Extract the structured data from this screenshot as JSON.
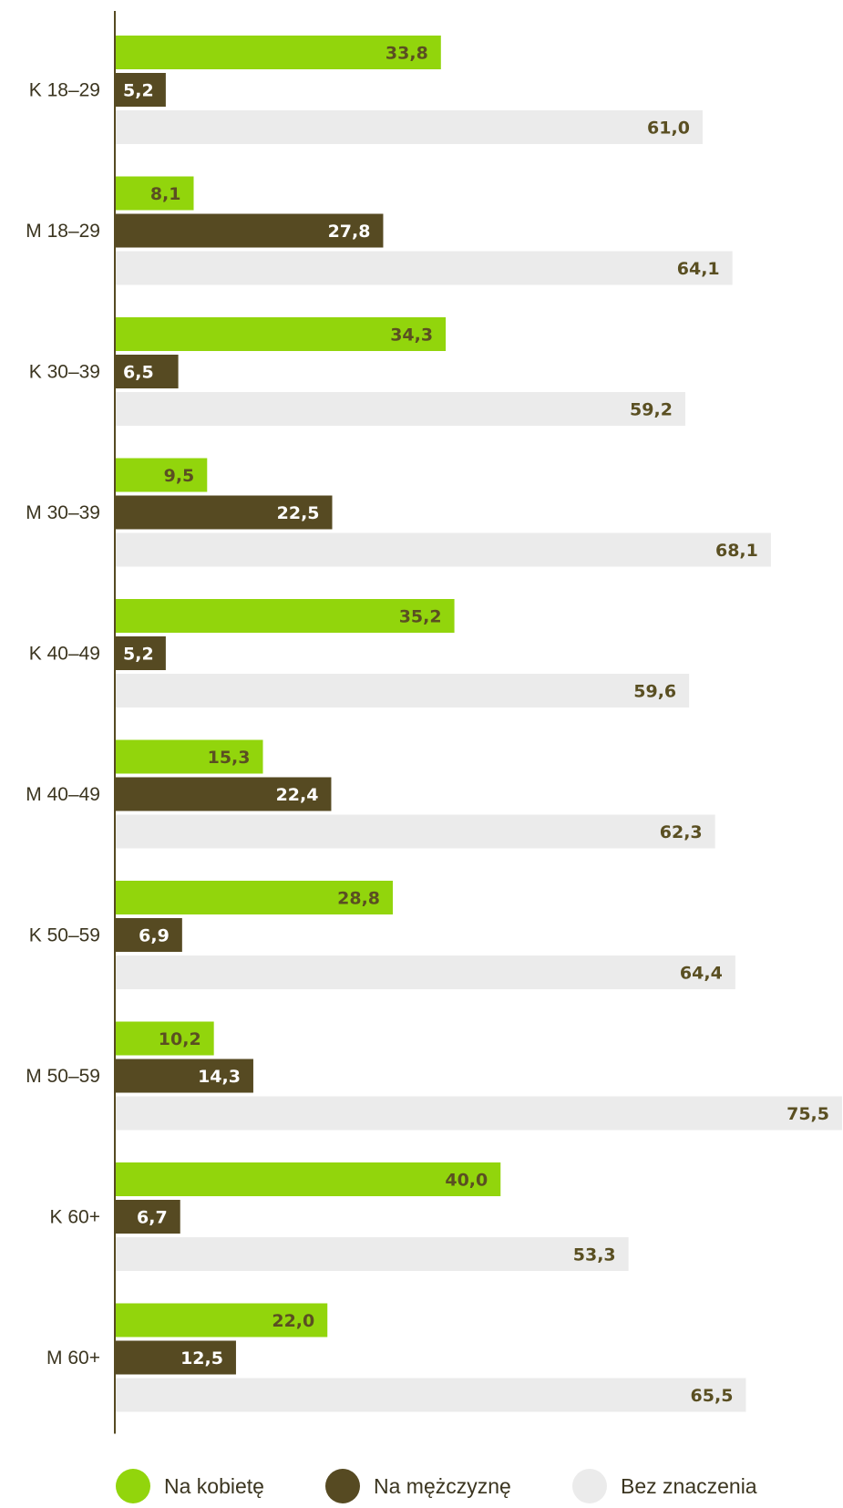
{
  "chart_data": {
    "type": "bar",
    "orientation": "horizontal",
    "categories": [
      "K 18–29",
      "M 18–29",
      "K 30–39",
      "M 30–39",
      "K 40–49",
      "M 40–49",
      "K 50–59",
      "M 50–59",
      "K 60+",
      "M 60+"
    ],
    "series": [
      {
        "name": "Na kobietę",
        "color": "#92d50c",
        "label_color": "#5a4f22",
        "values": [
          33.8,
          8.1,
          34.3,
          9.5,
          35.2,
          15.3,
          28.8,
          10.2,
          40.0,
          22.0
        ],
        "labels": [
          "33,8",
          "8,1",
          "34,3",
          "9,5",
          "35,2",
          "15,3",
          "28,8",
          "10,2",
          "40,0",
          "22,0"
        ]
      },
      {
        "name": "Na mężczyznę",
        "color": "#564a22",
        "label_color": "#ffffff",
        "values": [
          5.2,
          27.8,
          6.5,
          22.5,
          5.2,
          22.4,
          6.9,
          14.3,
          6.7,
          12.5
        ],
        "labels": [
          "5,2",
          "27,8",
          "6,5",
          "22,5",
          "5,2",
          "22,4",
          "6,9",
          "14,3",
          "6,7",
          "12,5"
        ]
      },
      {
        "name": "Bez znaczenia",
        "color": "#ebebeb",
        "label_color": "#5a4f22",
        "values": [
          61.0,
          64.1,
          59.2,
          68.1,
          59.6,
          62.3,
          64.4,
          75.5,
          53.3,
          65.5
        ],
        "labels": [
          "61,0",
          "64,1",
          "59,2",
          "68,1",
          "59,6",
          "62,3",
          "64,4",
          "75,5",
          "53,3",
          "65,5"
        ]
      }
    ],
    "xlim": [
      0,
      75.5
    ],
    "grid": false,
    "legend_position": "bottom",
    "title": "",
    "xlabel": "",
    "ylabel": ""
  },
  "axis_color": "#564a22"
}
